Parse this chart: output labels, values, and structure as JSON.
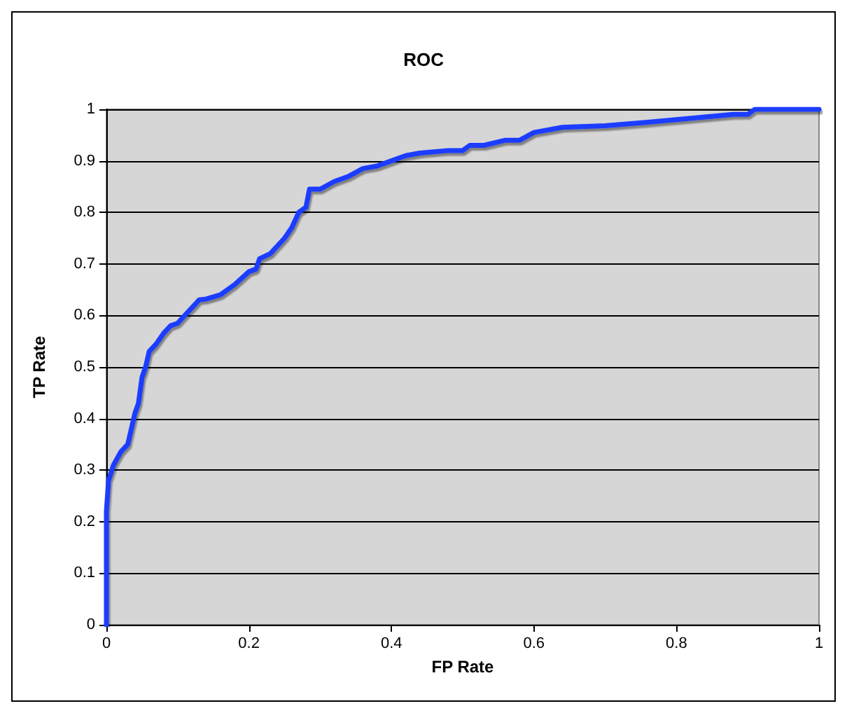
{
  "chart_data": {
    "type": "line",
    "title": "ROC",
    "xlabel": "FP Rate",
    "ylabel": "TP Rate",
    "xlim": [
      0,
      1
    ],
    "xticks": [
      0,
      0.2,
      0.4,
      0.6,
      0.8,
      1
    ],
    "ylim": [
      0,
      1
    ],
    "yticks": [
      0,
      0.1,
      0.2,
      0.3,
      0.4,
      0.5,
      0.6,
      0.7,
      0.8,
      0.9,
      1
    ],
    "grid": "y",
    "marker": "none",
    "line_style": "solid",
    "series": [
      {
        "color": "#1a3cff",
        "x": [
          0,
          0,
          0.003,
          0.01,
          0.02,
          0.03,
          0.035,
          0.04,
          0.045,
          0.05,
          0.055,
          0.06,
          0.07,
          0.08,
          0.09,
          0.1,
          0.11,
          0.12,
          0.13,
          0.14,
          0.16,
          0.18,
          0.2,
          0.21,
          0.215,
          0.23,
          0.25,
          0.26,
          0.27,
          0.28,
          0.285,
          0.3,
          0.32,
          0.34,
          0.36,
          0.38,
          0.4,
          0.42,
          0.44,
          0.48,
          0.5,
          0.51,
          0.53,
          0.56,
          0.58,
          0.6,
          0.64,
          0.7,
          0.76,
          0.8,
          0.84,
          0.88,
          0.9,
          0.91,
          1
        ],
        "values": [
          0,
          0.22,
          0.28,
          0.31,
          0.335,
          0.35,
          0.38,
          0.41,
          0.43,
          0.48,
          0.5,
          0.53,
          0.545,
          0.565,
          0.58,
          0.585,
          0.6,
          0.615,
          0.63,
          0.632,
          0.64,
          0.66,
          0.685,
          0.69,
          0.71,
          0.72,
          0.75,
          0.77,
          0.8,
          0.81,
          0.845,
          0.845,
          0.86,
          0.87,
          0.885,
          0.89,
          0.9,
          0.91,
          0.915,
          0.92,
          0.92,
          0.93,
          0.93,
          0.94,
          0.94,
          0.955,
          0.965,
          0.968,
          0.975,
          0.98,
          0.985,
          0.99,
          0.99,
          1,
          1
        ]
      }
    ]
  }
}
